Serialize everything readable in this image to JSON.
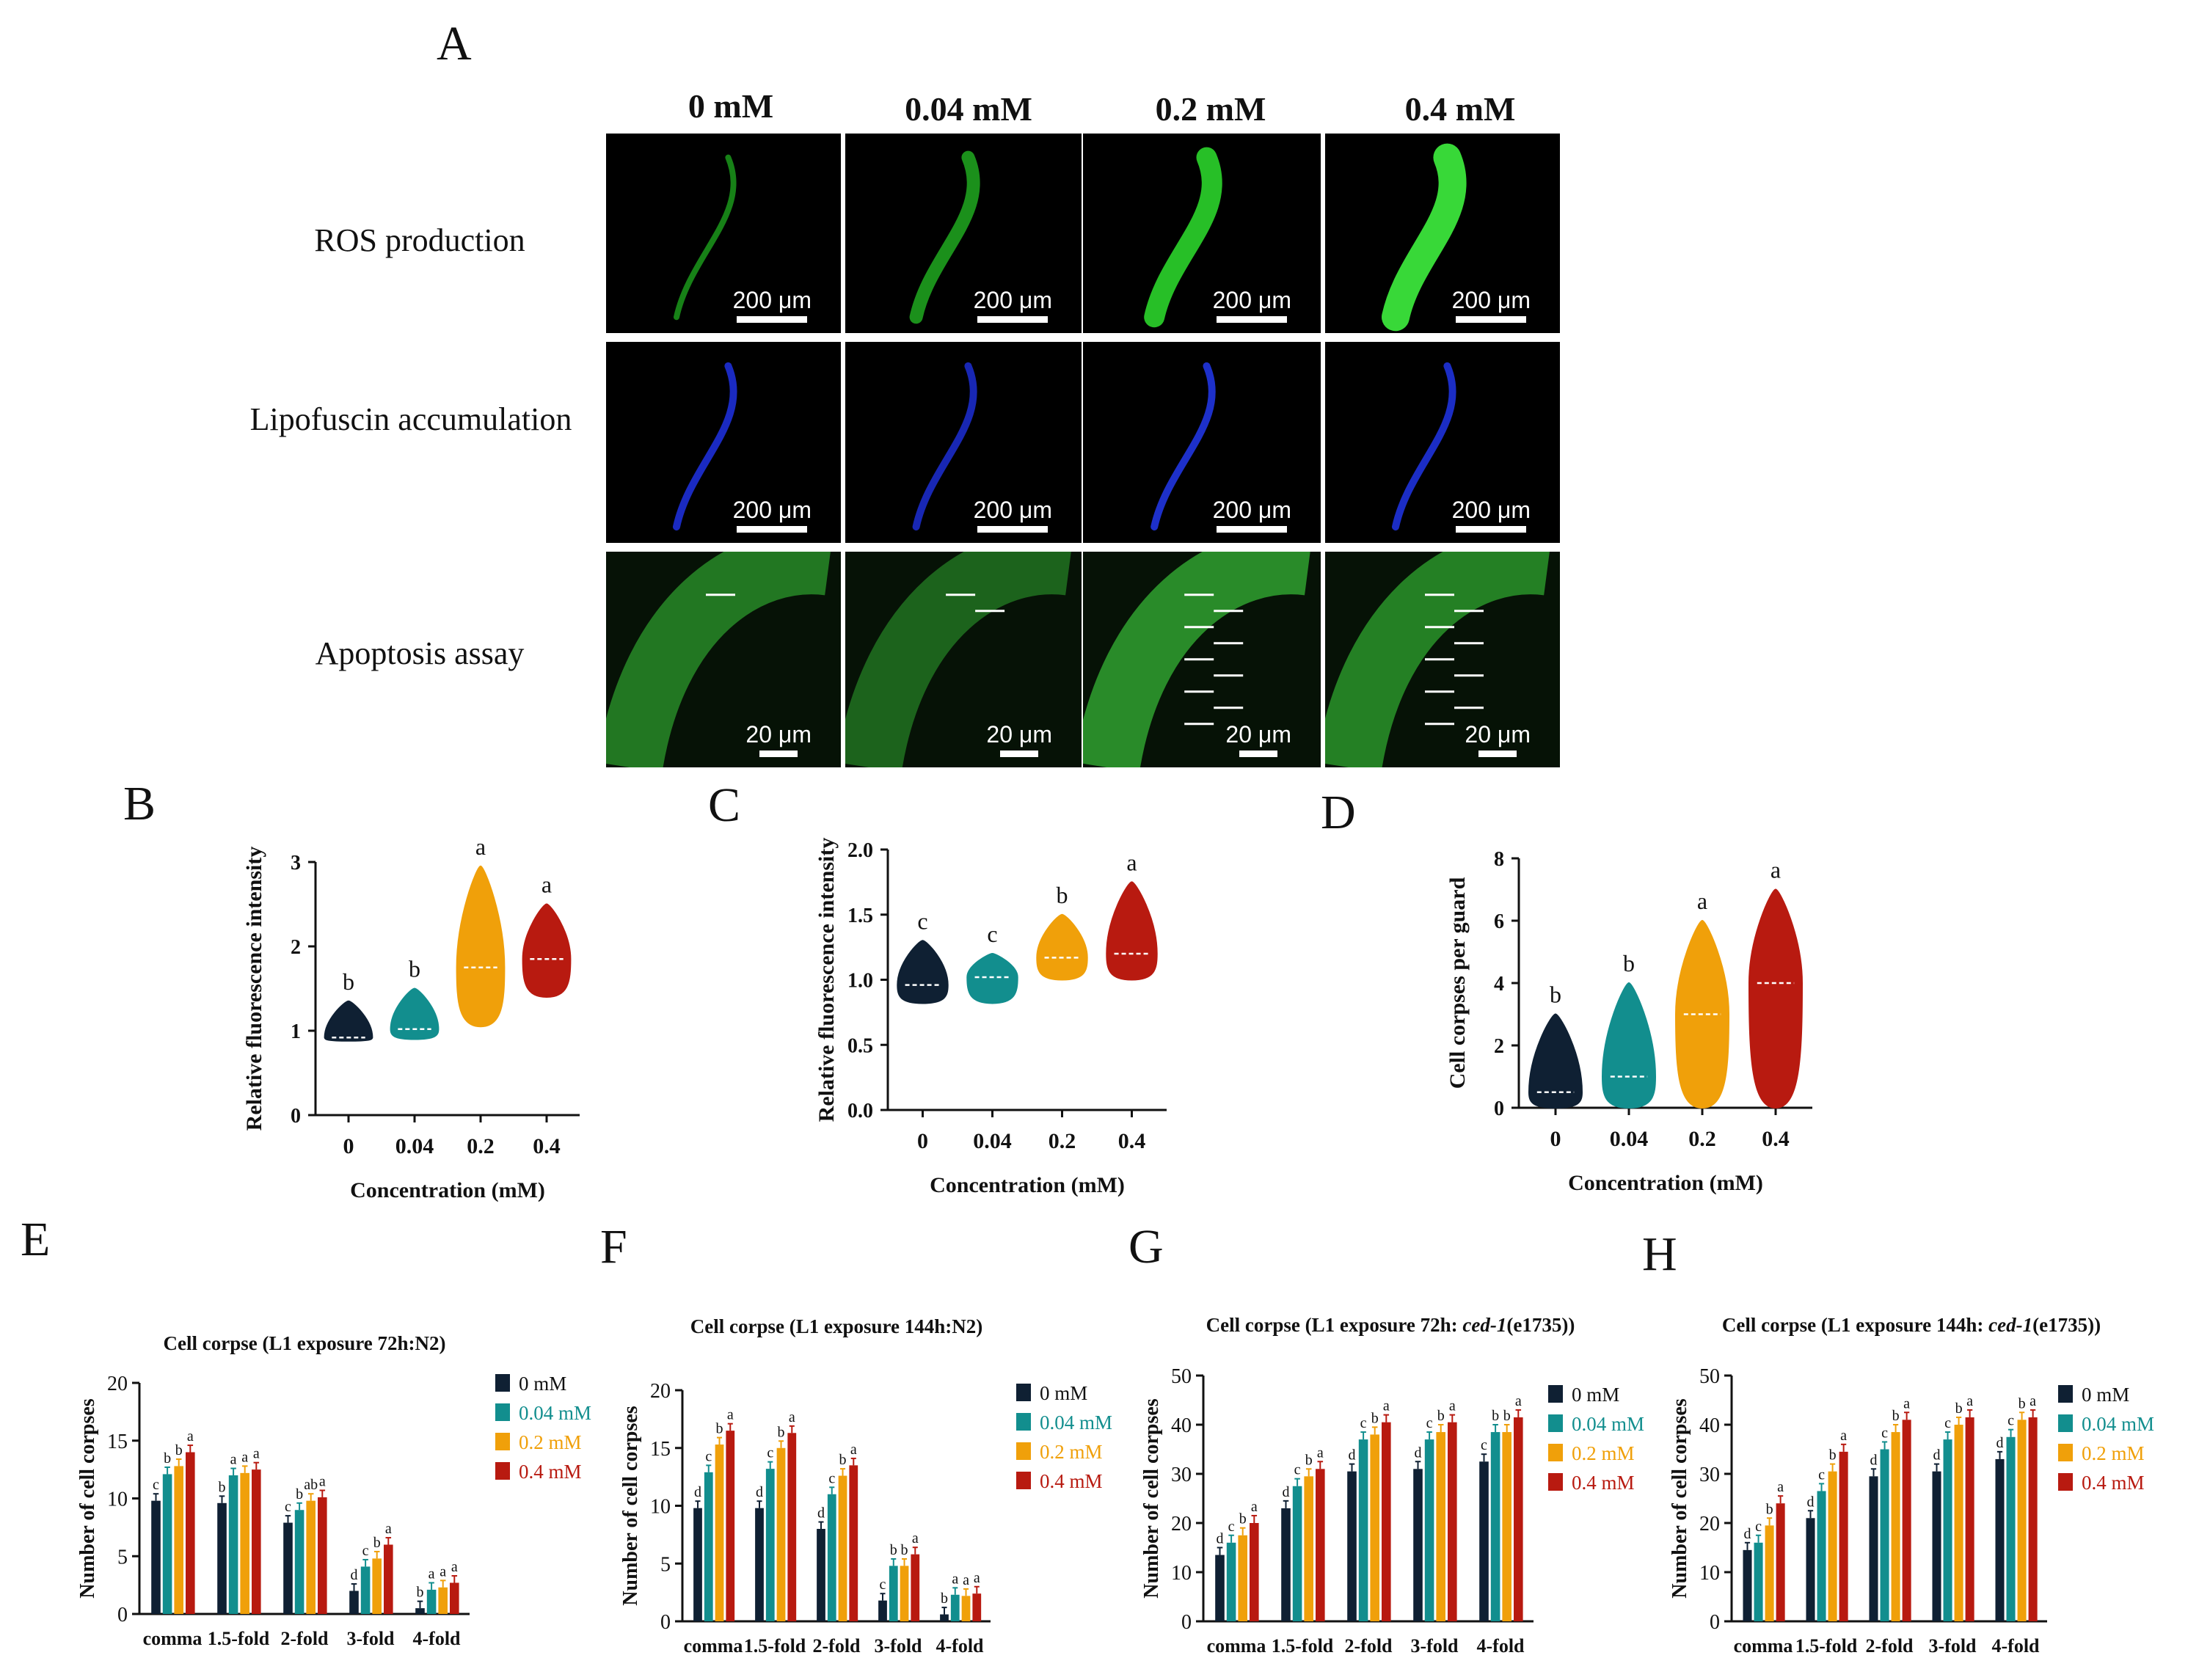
{
  "panel_letters": {
    "A": "A",
    "B": "B",
    "C": "C",
    "D": "D",
    "E": "E",
    "F": "F",
    "G": "G",
    "H": "H"
  },
  "concentrations": [
    "0 mM",
    "0.04 mM",
    "0.2 mM",
    "0.4 mM"
  ],
  "rows": [
    {
      "label": "ROS production",
      "scale": "200 μm",
      "colors": [
        "#1a8f1a",
        "#1ea01e",
        "#2bd42b",
        "#3ef03e"
      ]
    },
    {
      "label": "Lipofuscin accumulation",
      "scale": "200 μm",
      "colors": [
        "#1d2fd6",
        "#1b2bc8",
        "#2035e0",
        "#1e32da"
      ]
    },
    {
      "label": "Apoptosis assay",
      "scale": "20 μm",
      "colors": [
        "#2c9a2c",
        "#247f24",
        "#35b435",
        "#2fa52f"
      ]
    }
  ],
  "colors": {
    "c0": "#0f2033",
    "c1": "#128e8e",
    "c2": "#f0a00a",
    "c3": "#b81a10",
    "accent_white": "#ffffff"
  },
  "chart_data": [
    {
      "id": "B",
      "type": "violin",
      "xlabel": "Concentration (mM)",
      "ylabel": "Relative fluorescence intensity",
      "categories": [
        "0",
        "0.04",
        "0.2",
        "0.4"
      ],
      "ylim": [
        0,
        3
      ],
      "yticks": [
        "0",
        "1",
        "2",
        "3"
      ],
      "median": [
        0.92,
        1.02,
        1.75,
        1.85
      ],
      "min": [
        0.88,
        0.9,
        1.05,
        1.4
      ],
      "max": [
        1.35,
        1.5,
        2.95,
        2.5
      ],
      "letters": [
        "b",
        "b",
        "a",
        "a"
      ]
    },
    {
      "id": "C",
      "type": "violin",
      "xlabel": "Concentration (mM)",
      "ylabel": "Relative fluorescence intensity",
      "categories": [
        "0",
        "0.04",
        "0.2",
        "0.4"
      ],
      "ylim": [
        0,
        2
      ],
      "yticks": [
        "0.0",
        "0.5",
        "1.0",
        "1.5",
        "2.0"
      ],
      "median": [
        0.96,
        1.02,
        1.17,
        1.2
      ],
      "min": [
        0.82,
        0.82,
        1.0,
        1.0
      ],
      "max": [
        1.3,
        1.2,
        1.5,
        1.75
      ],
      "letters": [
        "c",
        "c",
        "b",
        "a"
      ]
    },
    {
      "id": "D",
      "type": "violin",
      "xlabel": "Concentration (mM)",
      "ylabel": "Cell corpses per guard",
      "categories": [
        "0",
        "0.04",
        "0.2",
        "0.4"
      ],
      "ylim": [
        0,
        8
      ],
      "yticks": [
        "0",
        "2",
        "4",
        "6",
        "8"
      ],
      "median": [
        0.5,
        1.0,
        3.0,
        4.0
      ],
      "min": [
        0,
        0,
        0,
        0
      ],
      "max": [
        3,
        4,
        6,
        7
      ],
      "letters": [
        "b",
        "b",
        "a",
        "a"
      ]
    },
    {
      "id": "E",
      "type": "bar",
      "title": "Cell corpse (L1 exposure 72h:N2)",
      "ylabel": "Number of cell corpses",
      "categories": [
        "comma",
        "1.5-fold",
        "2-fold",
        "3-fold",
        "4-fold"
      ],
      "ylim": [
        0,
        20
      ],
      "yticks": [
        "0",
        "5",
        "10",
        "15",
        "20"
      ],
      "series": [
        {
          "name": "0 mM",
          "values": [
            9.8,
            9.6,
            7.9,
            2.0,
            0.5
          ],
          "letters": [
            "c",
            "b",
            "c",
            "d",
            "b"
          ]
        },
        {
          "name": "0.04 mM",
          "values": [
            12.1,
            12.0,
            9.0,
            4.1,
            2.1
          ],
          "letters": [
            "b",
            "a",
            "b",
            "c",
            "a"
          ]
        },
        {
          "name": "0.2 mM",
          "values": [
            12.8,
            12.2,
            9.8,
            4.8,
            2.3
          ],
          "letters": [
            "b",
            "a",
            "ab",
            "b",
            "a"
          ]
        },
        {
          "name": "0.4 mM",
          "values": [
            14.0,
            12.5,
            10.1,
            6.0,
            2.7
          ],
          "letters": [
            "a",
            "a",
            "a",
            "a",
            "a"
          ]
        }
      ]
    },
    {
      "id": "F",
      "type": "bar",
      "title": "Cell corpse (L1 exposure 144h:N2)",
      "ylabel": "Number of cell corpses",
      "categories": [
        "comma",
        "1.5-fold",
        "2-fold",
        "3-fold",
        "4-fold"
      ],
      "ylim": [
        0,
        20
      ],
      "yticks": [
        "0",
        "5",
        "10",
        "15",
        "20"
      ],
      "series": [
        {
          "name": "0 mM",
          "values": [
            9.8,
            9.8,
            8.0,
            1.8,
            0.6
          ],
          "letters": [
            "d",
            "d",
            "d",
            "c",
            "b"
          ]
        },
        {
          "name": "0.04 mM",
          "values": [
            12.9,
            13.2,
            11.0,
            4.8,
            2.3
          ],
          "letters": [
            "c",
            "c",
            "c",
            "b",
            "a"
          ]
        },
        {
          "name": "0.2 mM",
          "values": [
            15.3,
            15.0,
            12.6,
            4.8,
            2.2
          ],
          "letters": [
            "b",
            "b",
            "b",
            "b",
            "a"
          ]
        },
        {
          "name": "0.4 mM",
          "values": [
            16.5,
            16.3,
            13.5,
            5.8,
            2.4
          ],
          "letters": [
            "a",
            "a",
            "a",
            "a",
            "a"
          ]
        }
      ]
    },
    {
      "id": "G",
      "type": "bar",
      "title_pre": "Cell corpse (L1 exposure 72h: ",
      "title_italic": "ced-1",
      "title_post": "(e1735))",
      "ylabel": "Number of cell corpses",
      "categories": [
        "comma",
        "1.5-fold",
        "2-fold",
        "3-fold",
        "4-fold"
      ],
      "ylim": [
        0,
        50
      ],
      "yticks": [
        "0",
        "10",
        "20",
        "30",
        "40",
        "50"
      ],
      "series": [
        {
          "name": "0 mM",
          "values": [
            13.5,
            23.0,
            30.5,
            31.0,
            32.5
          ],
          "letters": [
            "d",
            "d",
            "d",
            "d",
            "c"
          ]
        },
        {
          "name": "0.04 mM",
          "values": [
            16.0,
            27.5,
            37.0,
            37.0,
            38.5
          ],
          "letters": [
            "c",
            "c",
            "c",
            "c",
            "b"
          ]
        },
        {
          "name": "0.2 mM",
          "values": [
            17.5,
            29.5,
            38.0,
            38.5,
            38.5
          ],
          "letters": [
            "b",
            "b",
            "b",
            "b",
            "b"
          ]
        },
        {
          "name": "0.4 mM",
          "values": [
            20.0,
            31.0,
            40.5,
            40.5,
            41.5
          ],
          "letters": [
            "a",
            "a",
            "a",
            "a",
            "a"
          ]
        }
      ]
    },
    {
      "id": "H",
      "type": "bar",
      "title_pre": "Cell corpse (L1 exposure 144h: ",
      "title_italic": "ced-1",
      "title_post": "(e1735))",
      "ylabel": "Number of cell corpses",
      "categories": [
        "comma",
        "1.5-fold",
        "2-fold",
        "3-fold",
        "4-fold"
      ],
      "ylim": [
        0,
        50
      ],
      "yticks": [
        "0",
        "10",
        "20",
        "30",
        "40",
        "50"
      ],
      "series": [
        {
          "name": "0 mM",
          "values": [
            14.5,
            21.0,
            29.5,
            30.5,
            33.0
          ],
          "letters": [
            "d",
            "d",
            "d",
            "d",
            "d"
          ]
        },
        {
          "name": "0.04 mM",
          "values": [
            16.0,
            26.5,
            35.0,
            37.0,
            37.5
          ],
          "letters": [
            "c",
            "c",
            "c",
            "c",
            "c"
          ]
        },
        {
          "name": "0.2 mM",
          "values": [
            19.5,
            30.5,
            38.5,
            40.0,
            41.0
          ],
          "letters": [
            "b",
            "b",
            "b",
            "b",
            "b"
          ]
        },
        {
          "name": "0.4 mM",
          "values": [
            24.0,
            34.5,
            41.0,
            41.5,
            41.5
          ],
          "letters": [
            "a",
            "a",
            "a",
            "a",
            "a"
          ]
        }
      ]
    }
  ]
}
